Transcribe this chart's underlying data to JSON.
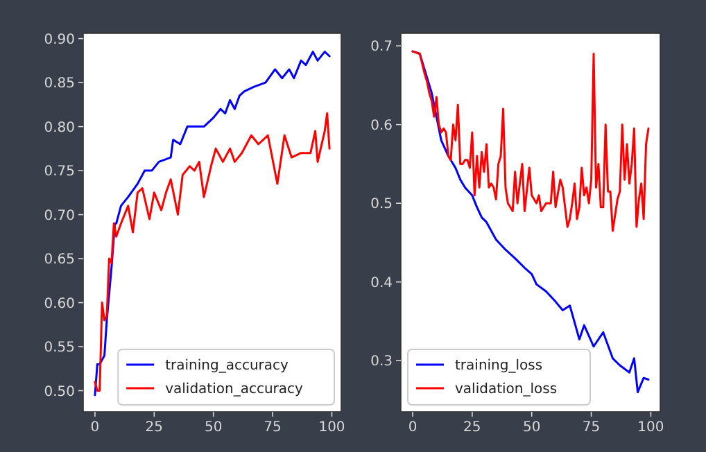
{
  "chart_data": [
    {
      "type": "line",
      "xlim": [
        -4.95,
        103.95
      ],
      "ylim": [
        0.476,
        0.906
      ],
      "xticks": [
        0,
        25,
        50,
        75,
        100
      ],
      "yticks": [
        {
          "value": 0.5,
          "label": "0.50"
        },
        {
          "value": 0.55,
          "label": "0.55"
        },
        {
          "value": 0.6,
          "label": "0.60"
        },
        {
          "value": 0.65,
          "label": "0.65"
        },
        {
          "value": 0.7,
          "label": "0.70"
        },
        {
          "value": 0.75,
          "label": "0.75"
        },
        {
          "value": 0.8,
          "label": "0.80"
        },
        {
          "value": 0.85,
          "label": "0.85"
        },
        {
          "value": 0.9,
          "label": "0.90"
        }
      ],
      "legend": "bottom right",
      "grid": false,
      "series": [
        {
          "name": "training_accuracy",
          "color": "#0000ff",
          "x": [
            0,
            1,
            2,
            4,
            5,
            7,
            8.4,
            9,
            11,
            14,
            18,
            21,
            24,
            27,
            32,
            33,
            36,
            39,
            42,
            46,
            50,
            53,
            55,
            57,
            59,
            61,
            63,
            67,
            72,
            76,
            79,
            82,
            84,
            87,
            89,
            92,
            94,
            97,
            99
          ],
          "values": [
            0.495,
            0.53,
            0.53,
            0.54,
            0.58,
            0.64,
            0.69,
            0.69,
            0.71,
            0.72,
            0.735,
            0.75,
            0.75,
            0.76,
            0.765,
            0.785,
            0.78,
            0.8,
            0.8,
            0.8,
            0.81,
            0.82,
            0.815,
            0.83,
            0.82,
            0.835,
            0.84,
            0.845,
            0.85,
            0.865,
            0.855,
            0.865,
            0.855,
            0.875,
            0.87,
            0.885,
            0.875,
            0.885,
            0.88
          ]
        },
        {
          "name": "validation_accuracy",
          "color": "#ff0000",
          "x": [
            0,
            1,
            2,
            3,
            4,
            5,
            6,
            7,
            8,
            9,
            11,
            14,
            16,
            18,
            20,
            23,
            25,
            28,
            30,
            32,
            35,
            37,
            40,
            42,
            44,
            46,
            49,
            51,
            54,
            57,
            59,
            62,
            66,
            69,
            73,
            77,
            80,
            83,
            87,
            91,
            93,
            94,
            97,
            98,
            99
          ],
          "values": [
            0.51,
            0.5,
            0.5,
            0.6,
            0.58,
            0.585,
            0.65,
            0.645,
            0.69,
            0.675,
            0.69,
            0.71,
            0.68,
            0.725,
            0.73,
            0.695,
            0.725,
            0.705,
            0.725,
            0.74,
            0.7,
            0.745,
            0.755,
            0.75,
            0.76,
            0.72,
            0.755,
            0.775,
            0.76,
            0.775,
            0.76,
            0.77,
            0.79,
            0.78,
            0.79,
            0.735,
            0.79,
            0.765,
            0.77,
            0.77,
            0.795,
            0.76,
            0.795,
            0.815,
            0.775
          ]
        }
      ]
    },
    {
      "type": "line",
      "xlim": [
        -4.95,
        103.95
      ],
      "ylim": [
        0.235,
        0.716
      ],
      "xticks": [
        0,
        25,
        50,
        75,
        100
      ],
      "yticks": [
        0.3,
        0.4,
        0.5,
        0.6,
        0.7
      ],
      "legend": "bottom left",
      "grid": false,
      "series": [
        {
          "name": "training_loss",
          "color": "#0000ff",
          "x": [
            0,
            3,
            5,
            8,
            10,
            12,
            15,
            16,
            18,
            20,
            22,
            25,
            27,
            29,
            31,
            35,
            39,
            43,
            47,
            50,
            52,
            56,
            60,
            63,
            66,
            70,
            72,
            76,
            80,
            84,
            87,
            91,
            93,
            94.5,
            97,
            99
          ],
          "values": [
            0.693,
            0.69,
            0.67,
            0.64,
            0.61,
            0.58,
            0.56,
            0.555,
            0.545,
            0.53,
            0.52,
            0.51,
            0.495,
            0.482,
            0.476,
            0.454,
            0.441,
            0.43,
            0.418,
            0.41,
            0.397,
            0.388,
            0.375,
            0.364,
            0.37,
            0.327,
            0.345,
            0.318,
            0.336,
            0.303,
            0.294,
            0.285,
            0.303,
            0.26,
            0.278,
            0.276
          ]
        },
        {
          "name": "validation_loss",
          "color": "#ff0000",
          "x": [
            0,
            3,
            5,
            6,
            7,
            8,
            9,
            10,
            11,
            12,
            13,
            14,
            15,
            16,
            17,
            18,
            19,
            20,
            21,
            22,
            23,
            24,
            25,
            26,
            27,
            28,
            29,
            30,
            31,
            32,
            33,
            34,
            35,
            36,
            37,
            38,
            39,
            40,
            42,
            43,
            44,
            46,
            47,
            49,
            50,
            52,
            53,
            54,
            56,
            58,
            59,
            60,
            62,
            63,
            64,
            65,
            66,
            67,
            68,
            69,
            70,
            71,
            72,
            73,
            74,
            75,
            76,
            77,
            78,
            79,
            80,
            81,
            82,
            83,
            84,
            86,
            87,
            88,
            89,
            90,
            91,
            92,
            93,
            94,
            95,
            96,
            97,
            98,
            99
          ],
          "values": [
            0.693,
            0.69,
            0.665,
            0.655,
            0.64,
            0.63,
            0.61,
            0.635,
            0.6,
            0.59,
            0.595,
            0.59,
            0.56,
            0.555,
            0.6,
            0.58,
            0.625,
            0.55,
            0.55,
            0.555,
            0.555,
            0.545,
            0.59,
            0.51,
            0.56,
            0.52,
            0.565,
            0.54,
            0.575,
            0.52,
            0.525,
            0.52,
            0.505,
            0.55,
            0.56,
            0.62,
            0.52,
            0.5,
            0.49,
            0.54,
            0.5,
            0.55,
            0.49,
            0.545,
            0.51,
            0.5,
            0.51,
            0.49,
            0.5,
            0.5,
            0.54,
            0.495,
            0.53,
            0.52,
            0.495,
            0.47,
            0.48,
            0.5,
            0.525,
            0.48,
            0.495,
            0.545,
            0.51,
            0.52,
            0.5,
            0.53,
            0.69,
            0.52,
            0.55,
            0.495,
            0.495,
            0.6,
            0.515,
            0.515,
            0.465,
            0.505,
            0.515,
            0.6,
            0.53,
            0.575,
            0.525,
            0.55,
            0.595,
            0.47,
            0.505,
            0.525,
            0.48,
            0.575,
            0.595
          ]
        }
      ]
    }
  ]
}
